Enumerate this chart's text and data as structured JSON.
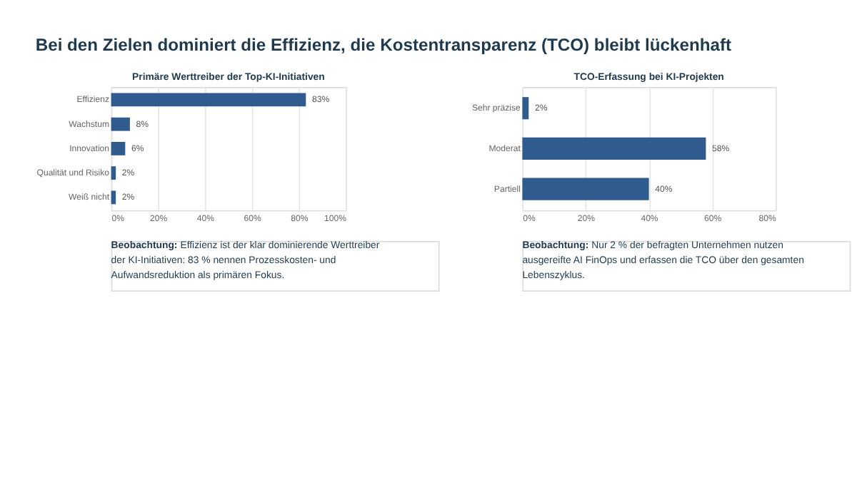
{
  "chart_data": [
    {
      "type": "other",
      "title": "Bei den Zielen dominiert die Effizienz, die Kostentransparenz (TCO) bleibt lückenhaft"
    },
    {
      "type": "bar",
      "orientation": "horizontal",
      "title": "Primäre Werttreiber der Top-KI-Initiativen",
      "categories": [
        "Effizienz",
        "Wachstum",
        "Innovation",
        "Qualität und Risiko",
        "Weiß nicht"
      ],
      "values": [
        83,
        8,
        6,
        2,
        2
      ],
      "value_labels": [
        "83%",
        "8%",
        "6%",
        "2%",
        "2%"
      ],
      "color": "#2f5b8f",
      "xlim": [
        0,
        100
      ],
      "xticks": [
        {
          "value": 0,
          "label": "0%"
        },
        {
          "value": 20,
          "label": "20%"
        },
        {
          "value": 40,
          "label": "40%"
        },
        {
          "value": 60,
          "label": "60%"
        },
        {
          "value": 80,
          "label": "80%"
        },
        {
          "value": 100,
          "label": "100%"
        }
      ],
      "grid": "x",
      "annotations": [
        "Beobachtung: Effizienz ist der klar dominierende Werttreiber der KI-Initiativen: 83 % nennen Prozesskosten- und Aufwandsreduktion als primären Fokus."
      ]
    },
    {
      "type": "bar",
      "orientation": "horizontal",
      "title": "TCO-Erfassung bei KI-Projekten",
      "categories": [
        "Sehr präzise",
        "Moderat",
        "Partiell"
      ],
      "values": [
        2,
        58,
        40
      ],
      "value_labels": [
        "2%",
        "58%",
        "40%"
      ],
      "color": "#2f5b8f",
      "xlim": [
        0,
        80
      ],
      "xticks": [
        {
          "value": 0,
          "label": "0%"
        },
        {
          "value": 20,
          "label": "20%"
        },
        {
          "value": 40,
          "label": "40%"
        },
        {
          "value": 60,
          "label": "60%"
        },
        {
          "value": 80,
          "label": "80%"
        }
      ],
      "grid": "x",
      "annotations": [
        "Beobachtung: Nur 2 % der befragten Unternehmen nutzen ausgereifte AI FinOps und erfassen die TCO über den gesamten Lebenszyklus."
      ]
    }
  ]
}
